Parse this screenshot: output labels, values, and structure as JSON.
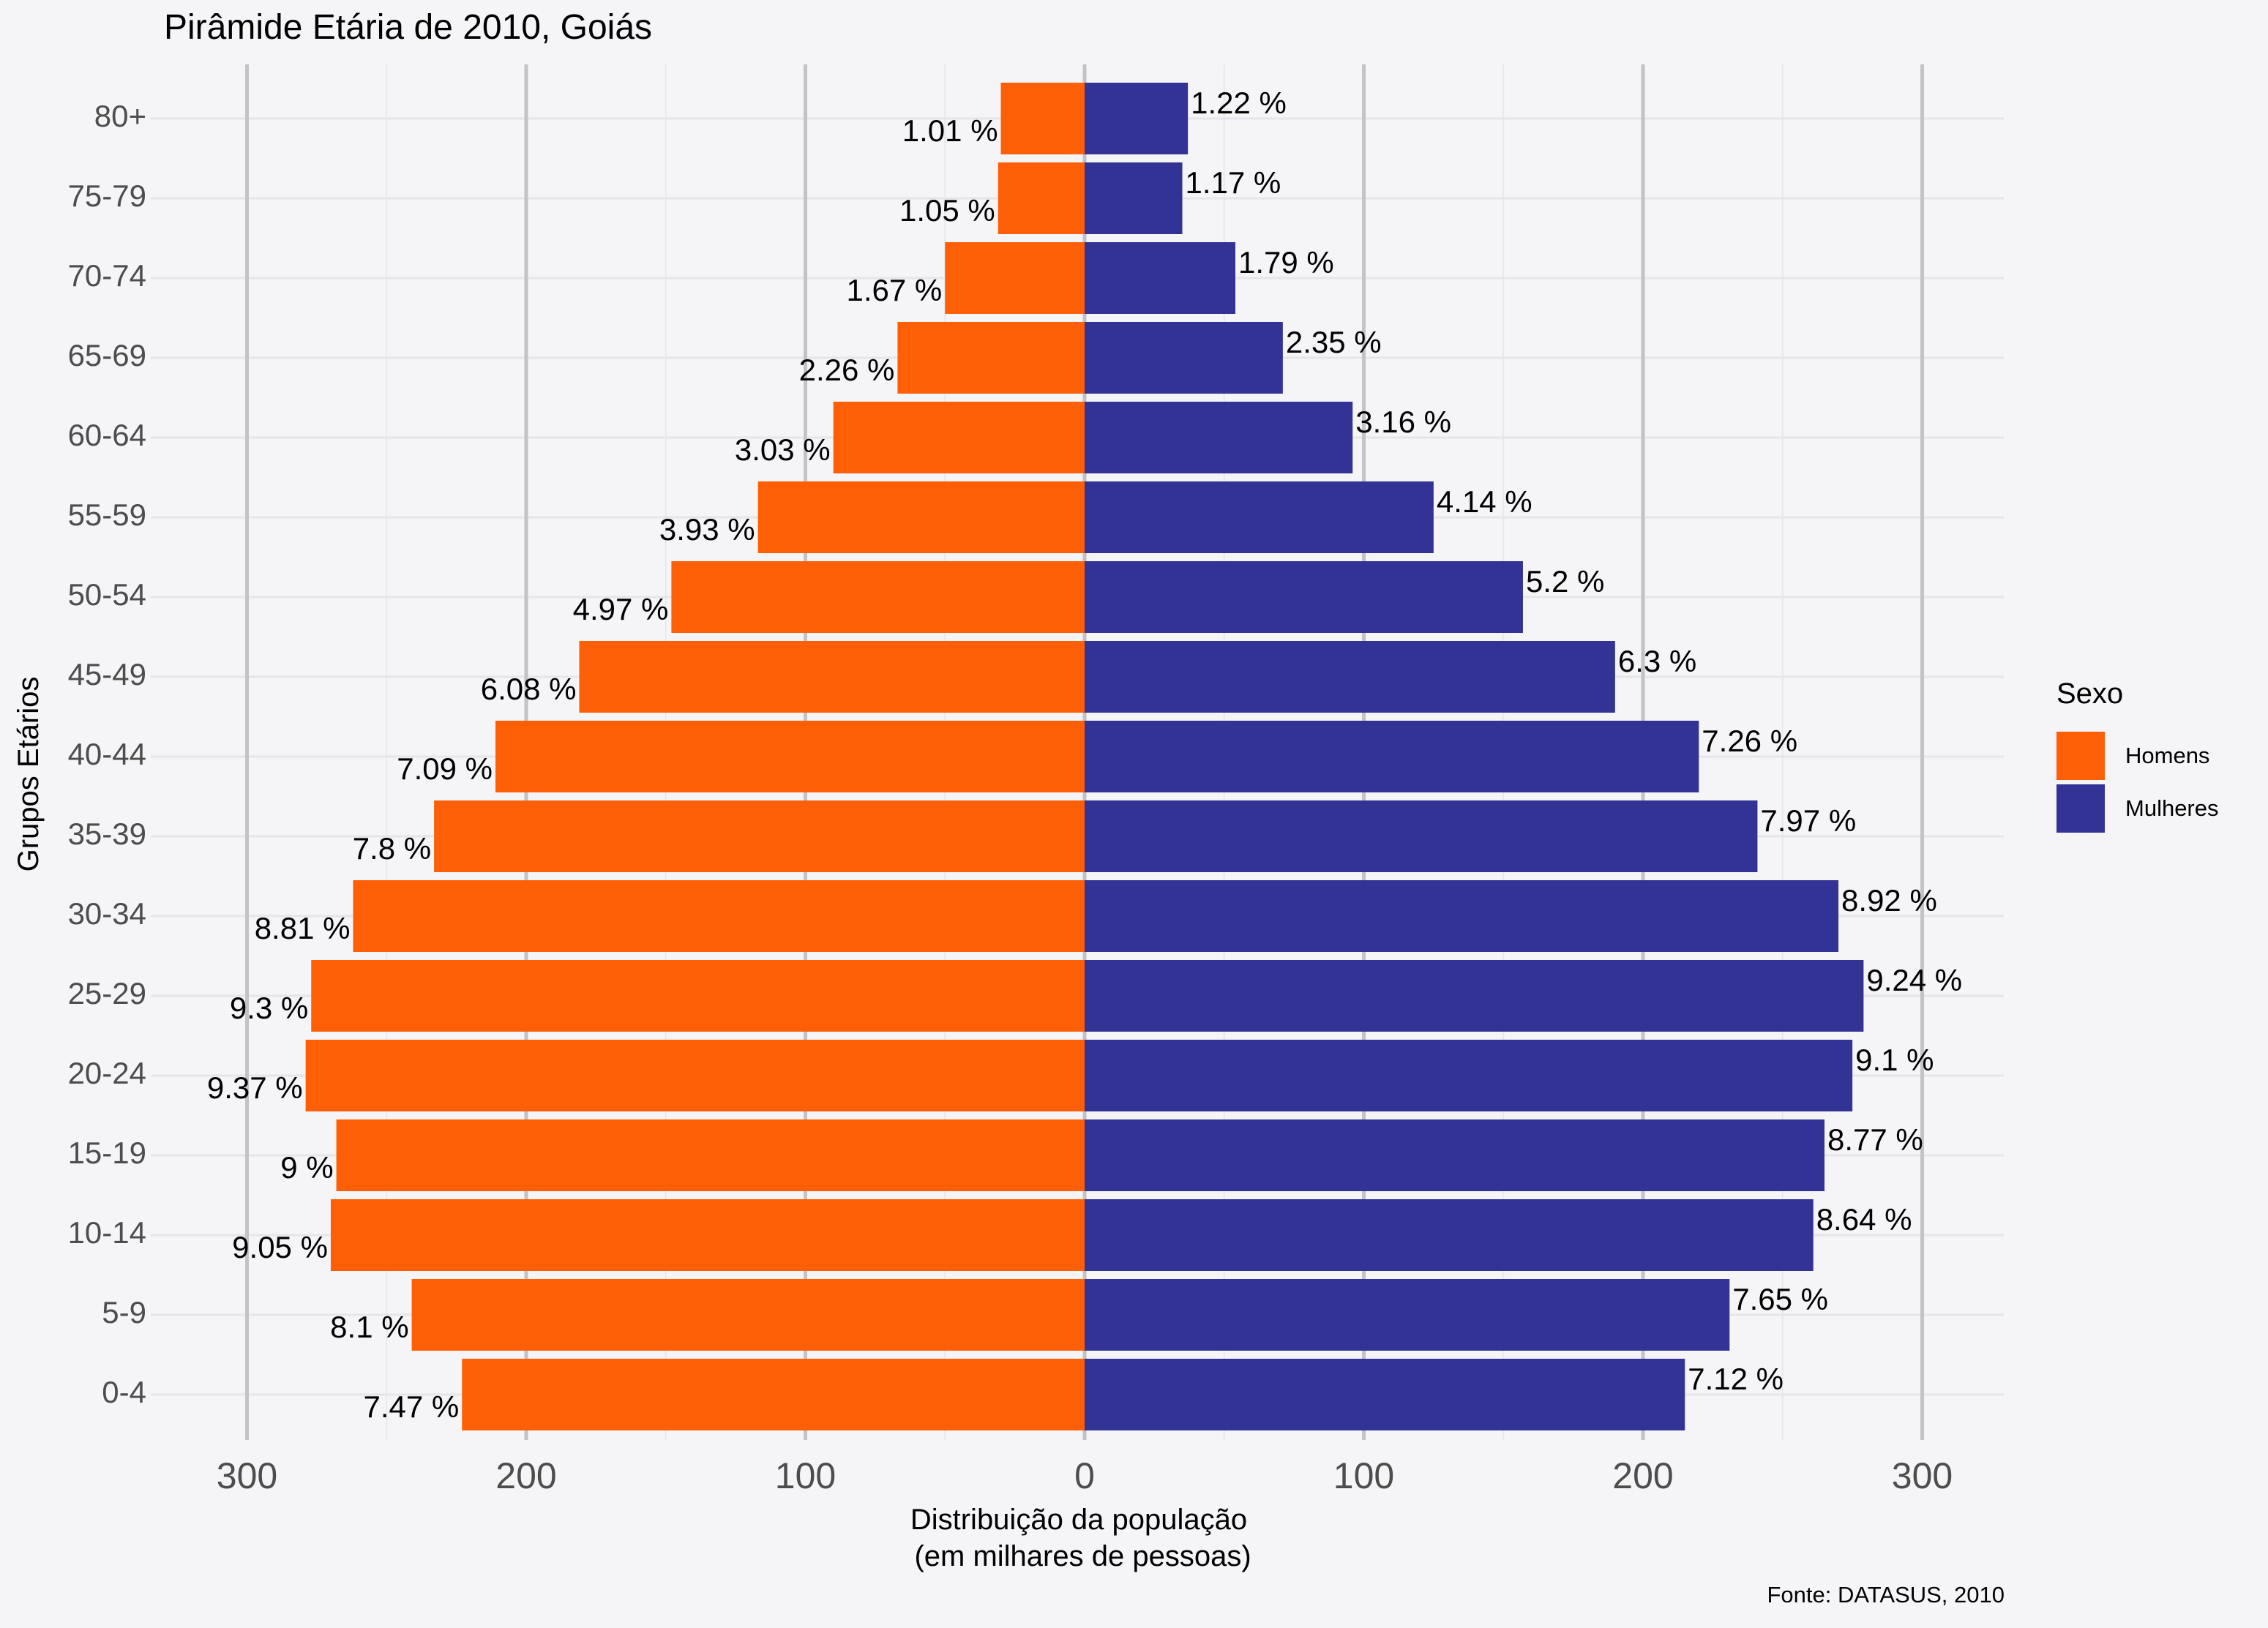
{
  "title": "Pirâmide Etária de 2010, Goiás",
  "caption": "Fonte: DATASUS, 2010",
  "legend": {
    "title": "Sexo",
    "items": [
      {
        "label": "Homens",
        "color": "#fc5f06"
      },
      {
        "label": "Mulheres",
        "color": "#333395"
      }
    ]
  },
  "chart_data": {
    "type": "bar",
    "orientation": "horizontal-diverging",
    "title": "Pirâmide Etária de 2010, Goiás",
    "xlabel_line1": "Distribuição da população",
    "xlabel_line2": " (em milhares de pessoas)",
    "ylabel": "Grupos Etários",
    "xlim": [
      -330,
      330
    ],
    "x_ticks": [
      -300,
      -200,
      -100,
      0,
      100,
      200,
      300
    ],
    "x_tick_labels": [
      "300",
      "200",
      "100",
      "0",
      "100",
      "200",
      "300"
    ],
    "grid": true,
    "legend_position": "right",
    "categories": [
      "0-4",
      "5-9",
      "10-14",
      "15-19",
      "20-24",
      "25-29",
      "30-34",
      "35-39",
      "40-44",
      "45-49",
      "50-54",
      "55-59",
      "60-64",
      "65-69",
      "70-74",
      "75-79",
      "80+"
    ],
    "series": [
      {
        "name": "Homens",
        "color": "#fc5f06",
        "values": [
          223,
          241,
          270,
          268,
          279,
          277,
          262,
          233,
          211,
          181,
          148,
          117,
          90,
          67,
          50,
          31,
          30
        ],
        "labels": [
          "7.47 %",
          "8.1 %",
          "9.05 %",
          "9 %",
          "9.37 %",
          "9.3 %",
          "8.81 %",
          "7.8 %",
          "7.09 %",
          "6.08 %",
          "4.97 %",
          "3.93 %",
          "3.03 %",
          "2.26 %",
          "1.67 %",
          "1.05 %",
          "1.01 %"
        ]
      },
      {
        "name": "Mulheres",
        "color": "#333395",
        "values": [
          215,
          231,
          261,
          265,
          275,
          279,
          270,
          241,
          220,
          190,
          157,
          125,
          96,
          71,
          54,
          35,
          37
        ],
        "labels": [
          "7.12 %",
          "7.65 %",
          "8.64 %",
          "8.77 %",
          "9.1 %",
          "9.24 %",
          "8.92 %",
          "7.97 %",
          "7.26 %",
          "6.3 %",
          "5.2 %",
          "4.14 %",
          "3.16 %",
          "2.35 %",
          "1.79 %",
          "1.17 %",
          "1.22 %"
        ]
      }
    ]
  }
}
